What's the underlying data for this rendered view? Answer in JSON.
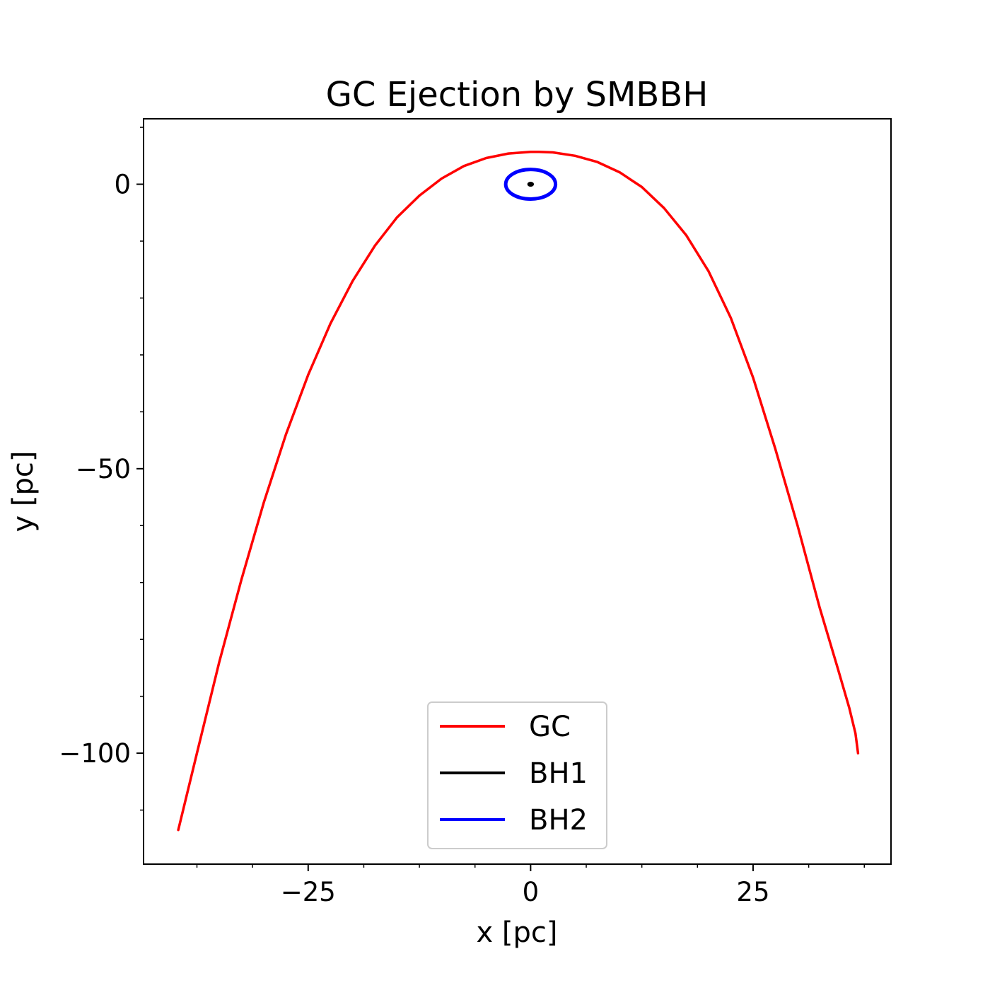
{
  "chart_data": {
    "type": "line",
    "title": "GC Ejection by SMBBH",
    "xlabel": "x [pc]",
    "ylabel": "y [pc]",
    "xlim": [
      -43.5,
      40.5
    ],
    "ylim": [
      -119.5,
      11.5
    ],
    "xticks": [
      -25,
      0,
      25
    ],
    "xtick_labels": [
      "−25",
      "0",
      "25"
    ],
    "xminor_step": 6.25,
    "yticks": [
      0,
      -50,
      -100
    ],
    "ytick_labels": [
      "0",
      "−50",
      "−100"
    ],
    "yminor_step": 10,
    "grid": false,
    "legend_position": "lower-center",
    "series": [
      {
        "name": "GC",
        "color": "#ff0000",
        "x": [
          -39.6,
          -37.5,
          -35.0,
          -32.5,
          -30.0,
          -27.5,
          -25.0,
          -22.5,
          -20.0,
          -17.5,
          -15.0,
          -12.5,
          -10.0,
          -7.5,
          -5.0,
          -2.5,
          0.0,
          0.8,
          2.5,
          5.0,
          7.5,
          10.0,
          12.5,
          15.0,
          17.5,
          20.0,
          22.5,
          25.0,
          27.5,
          30.0,
          32.5,
          34.5,
          35.8,
          36.5,
          36.8
        ],
        "y": [
          -113.5,
          -100.0,
          -84.0,
          -69.5,
          -56.0,
          -44.0,
          -33.5,
          -24.5,
          -17.0,
          -10.8,
          -5.8,
          -2.0,
          1.0,
          3.2,
          4.6,
          5.4,
          5.7,
          5.7,
          5.6,
          5.0,
          3.9,
          2.1,
          -0.5,
          -4.2,
          -9.0,
          -15.3,
          -23.5,
          -34.0,
          -46.5,
          -60.0,
          -74.5,
          -85.0,
          -92.0,
          -96.5,
          -100.0
        ]
      },
      {
        "name": "BH1",
        "color": "#000000",
        "ellipse": {
          "cx": 0.0,
          "cy": 0.0,
          "rx": 0.25,
          "ry": 0.25
        }
      },
      {
        "name": "BH2",
        "color": "#0000ff",
        "ellipse": {
          "cx": 0.0,
          "cy": 0.0,
          "rx": 2.8,
          "ry": 2.6
        }
      }
    ]
  }
}
